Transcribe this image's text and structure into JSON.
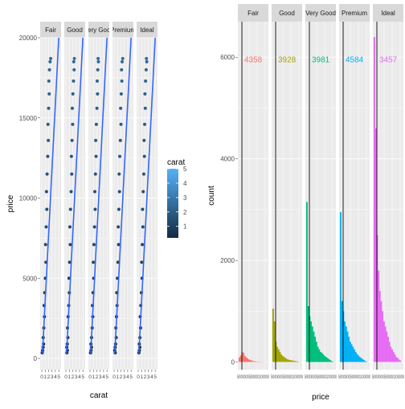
{
  "colors": {
    "panel_bg": "#ebebeb",
    "strip_bg": "#d9d9d9",
    "grid": "#ffffff",
    "axis_text": "#4d4d4d",
    "fit_line": "#3366ff",
    "carat_low": "#132b43",
    "carat_high": "#56b1f7",
    "cut_colors": [
      "#f8766d",
      "#a3a500",
      "#00bf7d",
      "#00b0f6",
      "#e76bf3"
    ]
  },
  "chart_data": [
    {
      "type": "scatter",
      "facets": [
        "Fair",
        "Good",
        "Very Good",
        "Premium",
        "Ideal"
      ],
      "xlabel": "carat",
      "ylabel": "price",
      "x_ticks": [
        "0",
        "1",
        "2",
        "3",
        "4",
        "5"
      ],
      "y_ticks": [
        "0",
        "5000",
        "10000",
        "15000",
        "20000"
      ],
      "xlim": [
        0,
        5.2
      ],
      "ylim": [
        -700,
        20000
      ],
      "fit_line": {
        "x0": 0.2,
        "y0": 300,
        "x1": 5.0,
        "y1": 20000
      },
      "scatter_points": [
        [
          0.25,
          350
        ],
        [
          0.3,
          500
        ],
        [
          0.35,
          700
        ],
        [
          0.4,
          900
        ],
        [
          0.5,
          1300
        ],
        [
          0.6,
          1900
        ],
        [
          0.7,
          2600
        ],
        [
          0.8,
          3300
        ],
        [
          0.9,
          4100
        ],
        [
          1.0,
          5000
        ],
        [
          1.1,
          6000
        ],
        [
          1.2,
          7100
        ],
        [
          1.3,
          8200
        ],
        [
          1.4,
          9300
        ],
        [
          1.5,
          10400
        ],
        [
          1.6,
          11500
        ],
        [
          1.7,
          12600
        ],
        [
          1.8,
          13600
        ],
        [
          1.9,
          14600
        ],
        [
          2.0,
          15600
        ],
        [
          2.1,
          16500
        ],
        [
          2.2,
          17300
        ],
        [
          2.3,
          18000
        ],
        [
          2.4,
          18500
        ],
        [
          2.5,
          18700
        ]
      ],
      "color_legend": {
        "title": "carat",
        "ticks": [
          "1",
          "2",
          "3",
          "4",
          "5"
        ],
        "range": [
          0.2,
          5.0
        ]
      }
    },
    {
      "type": "bar",
      "facets": [
        "Fair",
        "Good",
        "Very Good",
        "Premium",
        "Ideal"
      ],
      "xlabel": "price",
      "ylabel": "count",
      "y_ticks": [
        "0",
        "2000",
        "4000",
        "6000"
      ],
      "ylim": [
        -150,
        6700
      ],
      "x_tick_label": "5000000500000200000",
      "medians": [
        4358,
        3928,
        3981,
        4584,
        3457
      ],
      "median_labels": [
        "4358",
        "3928",
        "3981",
        "4584",
        "3457"
      ],
      "histograms": [
        [
          90,
          130,
          200,
          180,
          120,
          90,
          70,
          50,
          40,
          30,
          20,
          15,
          10,
          8,
          6,
          5,
          4,
          3,
          2,
          1
        ],
        [
          1050,
          800,
          400,
          300,
          250,
          200,
          150,
          120,
          100,
          80,
          60,
          50,
          40,
          35,
          30,
          25,
          20,
          15,
          10,
          5
        ],
        [
          3150,
          1100,
          900,
          800,
          700,
          600,
          500,
          400,
          300,
          250,
          200,
          180,
          150,
          120,
          100,
          80,
          60,
          40,
          20,
          10
        ],
        [
          2950,
          1200,
          1000,
          800,
          700,
          600,
          500,
          400,
          350,
          300,
          250,
          200,
          160,
          130,
          100,
          80,
          60,
          40,
          20,
          10
        ],
        [
          6400,
          4600,
          2500,
          1800,
          1400,
          1200,
          1000,
          800,
          700,
          600,
          500,
          400,
          300,
          250,
          200,
          150,
          100,
          80,
          50,
          30
        ]
      ]
    }
  ]
}
